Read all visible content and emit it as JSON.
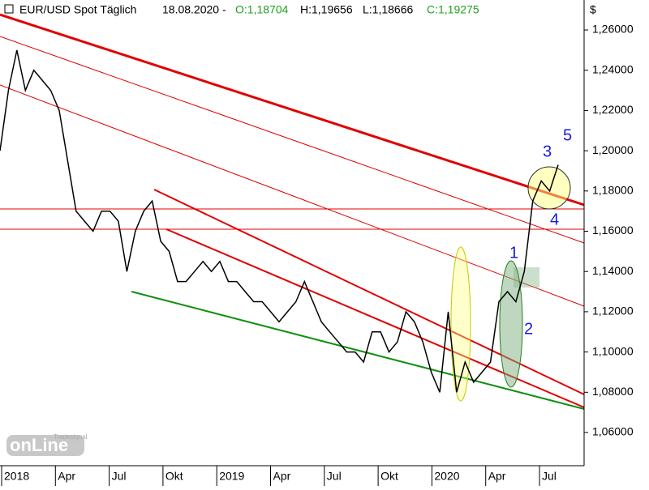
{
  "chart_data": {
    "type": "line",
    "title": "EUR/USD Spot Täglich",
    "date": "18.08.2020 -",
    "open": "O:1,18704",
    "high": "H:1,19656",
    "low": "L:1,18666",
    "close": "C:1,19275",
    "unit": "$",
    "logo": "onLine",
    "logo_sub": "Tradesignal",
    "x_labels": [
      "2018",
      "Apr",
      "Jul",
      "Okt",
      "2019",
      "Apr",
      "Jul",
      "Okt",
      "2020",
      "Apr",
      "Jul"
    ],
    "annotations": [
      "1",
      "2",
      "3",
      "4",
      "5"
    ],
    "color": "#000000",
    "values": [
      1.2,
      1.23,
      1.25,
      1.23,
      1.24,
      1.235,
      1.23,
      1.22,
      1.195,
      1.17,
      1.165,
      1.16,
      1.17,
      1.17,
      1.165,
      1.14,
      1.16,
      1.17,
      1.175,
      1.155,
      1.15,
      1.135,
      1.135,
      1.14,
      1.145,
      1.14,
      1.145,
      1.135,
      1.135,
      1.13,
      1.125,
      1.125,
      1.12,
      1.115,
      1.12,
      1.125,
      1.135,
      1.125,
      1.115,
      1.11,
      1.105,
      1.1,
      1.1,
      1.095,
      1.11,
      1.11,
      1.1,
      1.105,
      1.12,
      1.115,
      1.105,
      1.09,
      1.08,
      1.12,
      1.08,
      1.095,
      1.085,
      1.09,
      1.095,
      1.125,
      1.13,
      1.125,
      1.14,
      1.175,
      1.185,
      1.18,
      1.193
    ],
    "ylim": [
      1.0435,
      1.2749
    ],
    "yticks": [
      {
        "value": 1.06,
        "label": "1,06000"
      },
      {
        "value": 1.08,
        "label": "1,08000"
      },
      {
        "value": 1.1,
        "label": "1,10000"
      },
      {
        "value": 1.12,
        "label": "1,12000"
      },
      {
        "value": 1.14,
        "label": "1,14000"
      },
      {
        "value": 1.16,
        "label": "1,16000"
      },
      {
        "value": 1.18,
        "label": "1,18000"
      },
      {
        "value": 1.2,
        "label": "1,20000"
      },
      {
        "value": 1.22,
        "label": "1,22000"
      },
      {
        "value": 1.24,
        "label": "1,24000"
      },
      {
        "value": 1.26,
        "label": "1,26000"
      }
    ]
  }
}
